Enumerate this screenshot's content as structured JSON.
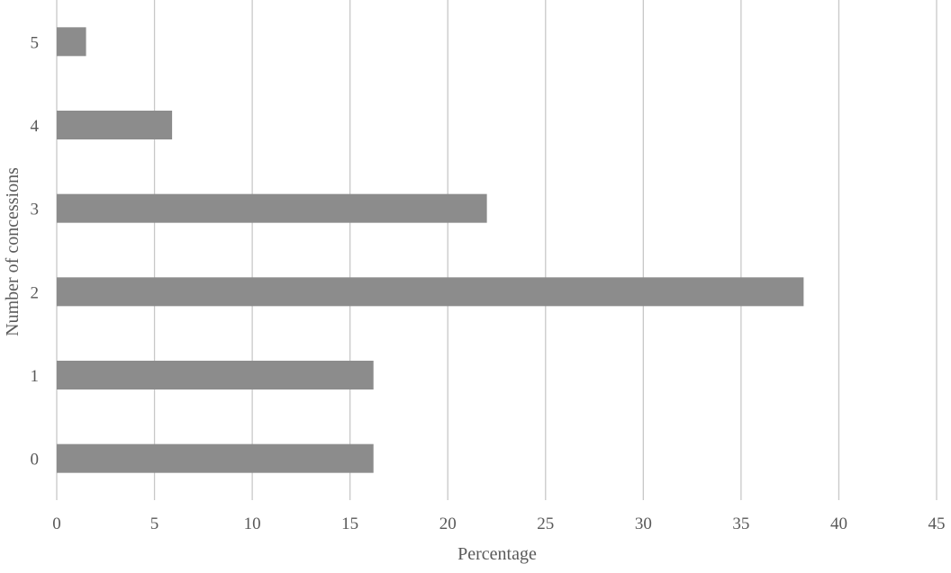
{
  "chart_data": {
    "type": "bar",
    "orientation": "horizontal",
    "categories": [
      "0",
      "1",
      "2",
      "3",
      "4",
      "5"
    ],
    "values": [
      16.2,
      16.2,
      38.2,
      22.0,
      5.9,
      1.5
    ],
    "xlabel": "Percentage",
    "ylabel": "Number of concessions",
    "xlim": [
      0,
      45
    ],
    "x_ticks": [
      "0",
      "5",
      "10",
      "15",
      "20",
      "25",
      "30",
      "35",
      "40",
      "45"
    ],
    "grid": "vertical",
    "legend": "none",
    "bar_color": "#8c8c8c",
    "grid_color": "#c8c8c8",
    "text_color": "#595959"
  }
}
